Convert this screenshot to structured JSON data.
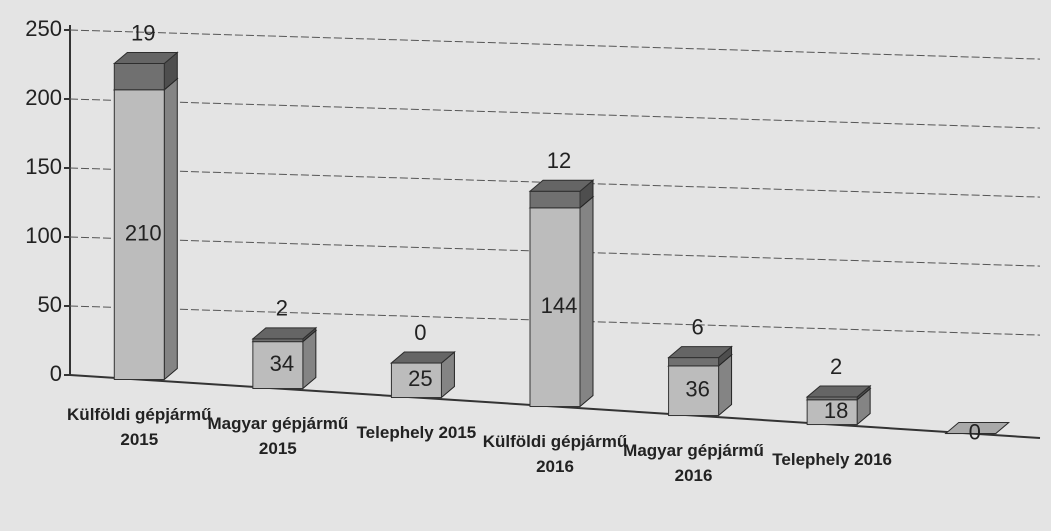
{
  "chart_data": {
    "type": "bar3d-stacked",
    "categories": [
      "Külföldi gépjármű 2015",
      "Magyar gépjármű 2015",
      "Telephely 2015",
      "Külföldi gépjármű 2016",
      "Magyar gépjármű 2016",
      "Telephely 2016",
      null
    ],
    "series": [
      {
        "color": "#bcbcbc",
        "values": [
          210,
          34,
          25,
          144,
          36,
          18,
          0
        ]
      },
      {
        "color": "#707070",
        "values": [
          19,
          2,
          0,
          12,
          6,
          2,
          null
        ]
      }
    ],
    "ylim": [
      0,
      250
    ],
    "yticks": [
      0,
      50,
      100,
      150,
      200,
      250
    ],
    "grid": true
  }
}
